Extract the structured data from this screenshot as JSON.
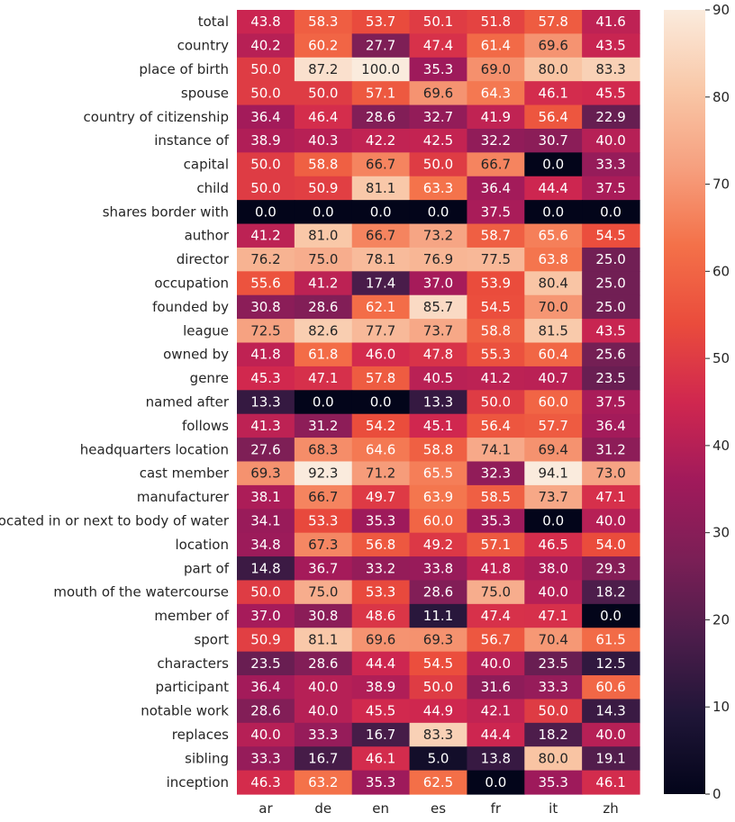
{
  "chart_data": {
    "type": "heatmap",
    "title": "",
    "xlabel": "",
    "ylabel": "",
    "columns": [
      "ar",
      "de",
      "en",
      "es",
      "fr",
      "it",
      "zh"
    ],
    "rows": [
      "total",
      "country",
      "place of birth",
      "spouse",
      "country of citizenship",
      "instance of",
      "capital",
      "child",
      "shares border with",
      "author",
      "director",
      "occupation",
      "founded by",
      "league",
      "owned by",
      "genre",
      "named after",
      "follows",
      "headquarters location",
      "cast member",
      "manufacturer",
      "located in or next to body of water",
      "location",
      "part of",
      "mouth of the watercourse",
      "member of",
      "sport",
      "characters",
      "participant",
      "notable work",
      "replaces",
      "sibling",
      "inception"
    ],
    "values": [
      [
        43.8,
        58.3,
        53.7,
        50.1,
        51.8,
        57.8,
        41.6
      ],
      [
        40.2,
        60.2,
        27.7,
        47.4,
        61.4,
        69.6,
        43.5
      ],
      [
        50.0,
        87.2,
        100.0,
        35.3,
        69.0,
        80.0,
        83.3
      ],
      [
        50.0,
        50.0,
        57.1,
        69.6,
        64.3,
        46.1,
        45.5
      ],
      [
        36.4,
        46.4,
        28.6,
        32.7,
        41.9,
        56.4,
        22.9
      ],
      [
        38.9,
        40.3,
        42.2,
        42.5,
        32.2,
        30.7,
        40.0
      ],
      [
        50.0,
        58.8,
        66.7,
        50.0,
        66.7,
        0.0,
        33.3
      ],
      [
        50.0,
        50.9,
        81.1,
        63.3,
        36.4,
        44.4,
        37.5
      ],
      [
        0.0,
        0.0,
        0.0,
        0.0,
        37.5,
        0.0,
        0.0
      ],
      [
        41.2,
        81.0,
        66.7,
        73.2,
        58.7,
        65.6,
        54.5
      ],
      [
        76.2,
        75.0,
        78.1,
        76.9,
        77.5,
        63.8,
        25.0
      ],
      [
        55.6,
        41.2,
        17.4,
        37.0,
        53.9,
        80.4,
        25.0
      ],
      [
        30.8,
        28.6,
        62.1,
        85.7,
        54.5,
        70.0,
        25.0
      ],
      [
        72.5,
        82.6,
        77.7,
        73.7,
        58.8,
        81.5,
        43.5
      ],
      [
        41.8,
        61.8,
        46.0,
        47.8,
        55.3,
        60.4,
        25.6
      ],
      [
        45.3,
        47.1,
        57.8,
        40.5,
        41.2,
        40.7,
        23.5
      ],
      [
        13.3,
        0.0,
        0.0,
        13.3,
        50.0,
        60.0,
        37.5
      ],
      [
        41.3,
        31.2,
        54.2,
        45.1,
        56.4,
        57.7,
        36.4
      ],
      [
        27.6,
        68.3,
        64.6,
        58.8,
        74.1,
        69.4,
        31.2
      ],
      [
        69.3,
        92.3,
        71.2,
        65.5,
        32.3,
        94.1,
        73.0
      ],
      [
        38.1,
        66.7,
        49.7,
        63.9,
        58.5,
        73.7,
        47.1
      ],
      [
        34.1,
        53.3,
        35.3,
        60.0,
        35.3,
        0.0,
        40.0
      ],
      [
        34.8,
        67.3,
        56.8,
        49.2,
        57.1,
        46.5,
        54.0
      ],
      [
        14.8,
        36.7,
        33.2,
        33.8,
        41.8,
        38.0,
        29.3
      ],
      [
        50.0,
        75.0,
        53.3,
        28.6,
        75.0,
        40.0,
        18.2
      ],
      [
        37.0,
        30.8,
        48.6,
        11.1,
        47.4,
        47.1,
        0.0
      ],
      [
        50.9,
        81.1,
        69.6,
        69.3,
        56.7,
        70.4,
        61.5
      ],
      [
        23.5,
        28.6,
        44.4,
        54.5,
        40.0,
        23.5,
        12.5
      ],
      [
        36.4,
        40.0,
        38.9,
        50.0,
        31.6,
        33.3,
        60.6
      ],
      [
        28.6,
        40.0,
        45.5,
        44.9,
        42.1,
        50.0,
        14.3
      ],
      [
        40.0,
        33.3,
        16.7,
        83.3,
        44.4,
        18.2,
        40.0
      ],
      [
        33.3,
        16.7,
        46.1,
        5.0,
        13.8,
        80.0,
        19.1
      ],
      [
        46.3,
        63.2,
        35.3,
        62.5,
        0.0,
        35.3,
        46.1
      ]
    ],
    "vmin": 0,
    "vmax": 90,
    "colorbar_ticks": [
      0,
      10,
      20,
      30,
      40,
      50,
      60,
      70,
      80,
      90
    ],
    "colormap": "rocket",
    "colormap_stops": [
      "#03051a",
      "#1f1537",
      "#4c1d4b",
      "#7b1f56",
      "#a11a5b",
      "#d0274f",
      "#ea4c3c",
      "#f47149",
      "#f6a07f",
      "#f9c8a8",
      "#faebdd"
    ],
    "annotation_format": "0.1f"
  }
}
